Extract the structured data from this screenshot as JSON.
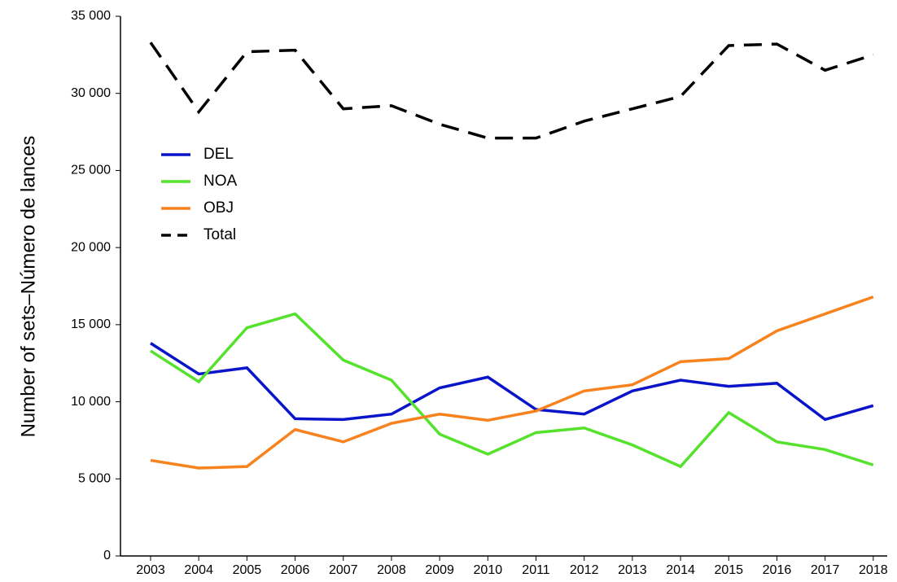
{
  "chart_data": {
    "type": "line",
    "y_label": "Number of sets–Número de lances",
    "x": [
      2003,
      2004,
      2005,
      2006,
      2007,
      2008,
      2009,
      2010,
      2011,
      2012,
      2013,
      2014,
      2015,
      2016,
      2017,
      2018
    ],
    "xticks": [
      2003,
      2004,
      2005,
      2006,
      2007,
      2008,
      2009,
      2010,
      2011,
      2012,
      2013,
      2014,
      2015,
      2016,
      2017,
      2018
    ],
    "xlim": [
      2002.375,
      2018.29
    ],
    "ylim": [
      0,
      35000
    ],
    "yticks": [
      0,
      {
        "value": 5000,
        "label": "5 000"
      },
      {
        "value": 10000,
        "label": "10 000"
      },
      {
        "value": 15000,
        "label": "15 000"
      },
      {
        "value": 20000,
        "label": "20 000"
      },
      {
        "value": 25000,
        "label": "25 000"
      },
      {
        "value": 30000,
        "label": "30 000"
      },
      {
        "value": 35000,
        "label": "35 000"
      }
    ],
    "legend": "upper left",
    "series": [
      {
        "name": "DEL",
        "color": "#0a14c8",
        "dash": "solid",
        "values": [
          13800,
          11800,
          12200,
          8900,
          8850,
          9200,
          10900,
          11600,
          9500,
          9200,
          10700,
          11400,
          11000,
          11200,
          8850,
          9750
        ]
      },
      {
        "name": "NOA",
        "color": "#55e22d",
        "dash": "solid",
        "values": [
          13300,
          11300,
          14800,
          15700,
          12700,
          11400,
          7900,
          6600,
          8000,
          8300,
          7200,
          5800,
          9300,
          7400,
          6900,
          5900
        ]
      },
      {
        "name": "OBJ",
        "color": "#f7821e",
        "dash": "solid",
        "values": [
          6200,
          5700,
          5800,
          8200,
          7400,
          8600,
          9200,
          8800,
          9400,
          10700,
          11100,
          12600,
          12800,
          14600,
          15700,
          16800
        ]
      },
      {
        "name": "Total",
        "color": "#000000",
        "dash": "dashed",
        "values": [
          33300,
          28800,
          32700,
          32800,
          29000,
          29200,
          28000,
          27100,
          27100,
          28200,
          29000,
          29800,
          33100,
          33200,
          31500,
          32500
        ]
      }
    ]
  }
}
